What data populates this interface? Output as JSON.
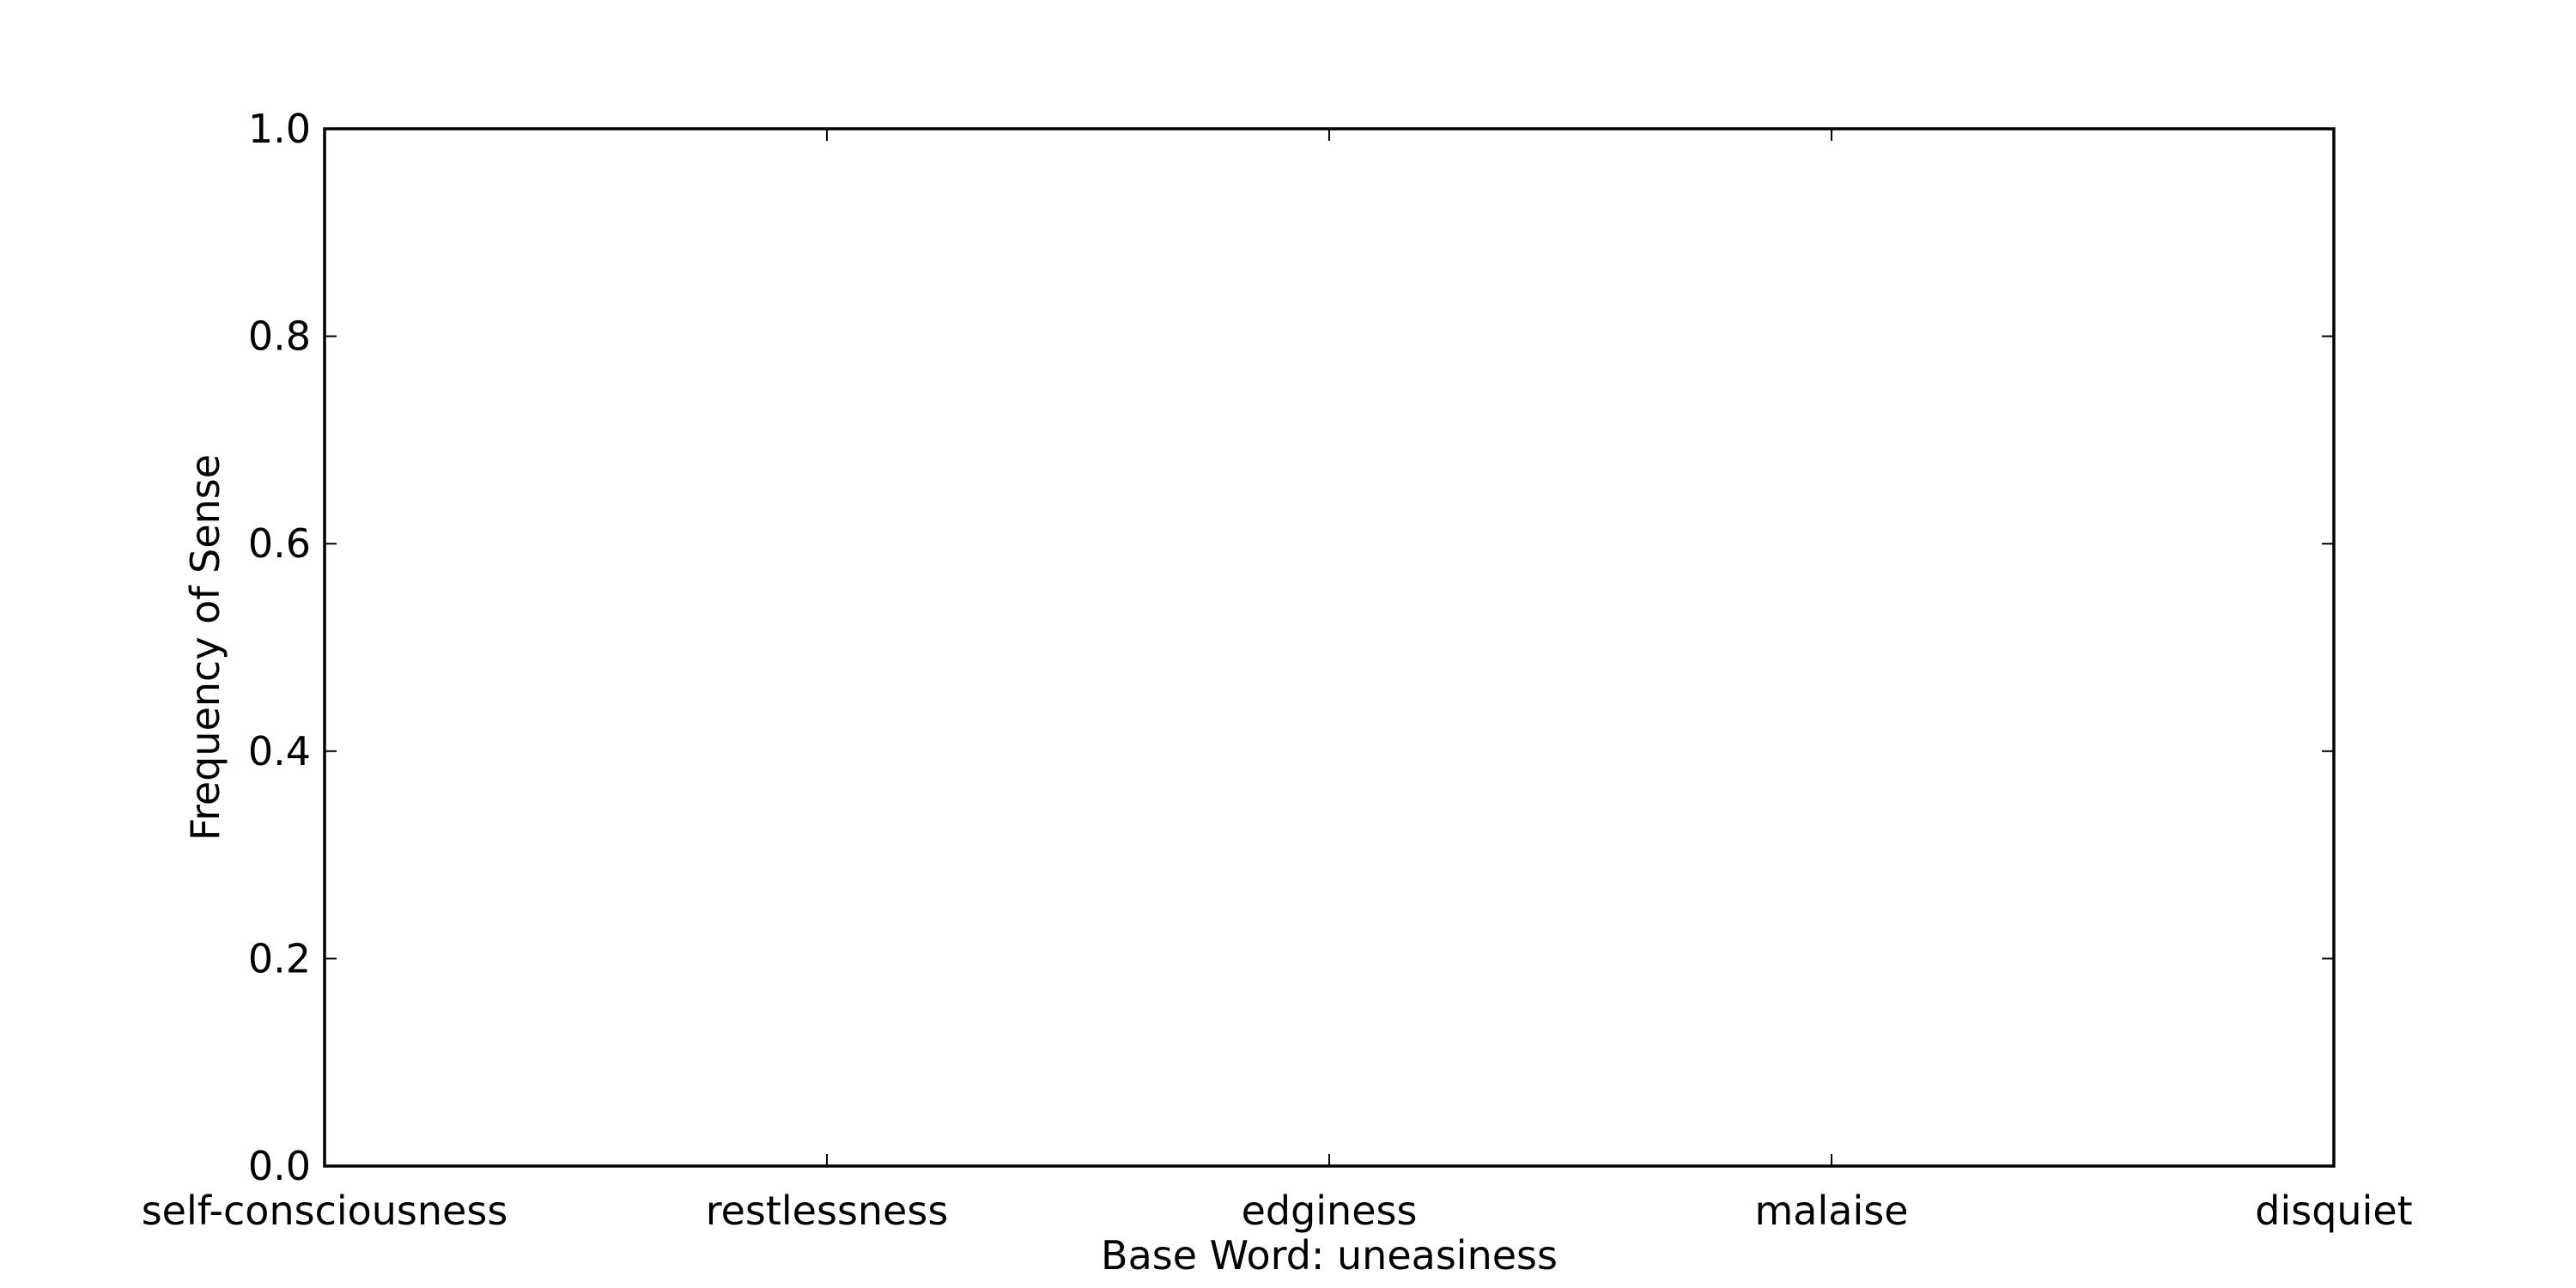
{
  "chart_data": {
    "type": "bar",
    "title": "",
    "xlabel": "Base Word: uneasiness",
    "ylabel": "Frequency of Sense",
    "categories": [
      "self-consciousness",
      "restlessness",
      "edginess",
      "malaise",
      "disquiet"
    ],
    "series": [
      {
        "values": [
          0,
          0,
          0,
          0,
          0
        ]
      }
    ],
    "ylim": [
      0,
      1
    ],
    "yticks": [
      "0.0",
      "0.2",
      "0.4",
      "0.6",
      "0.8",
      "1.0"
    ],
    "grid": false,
    "legend": "none"
  }
}
